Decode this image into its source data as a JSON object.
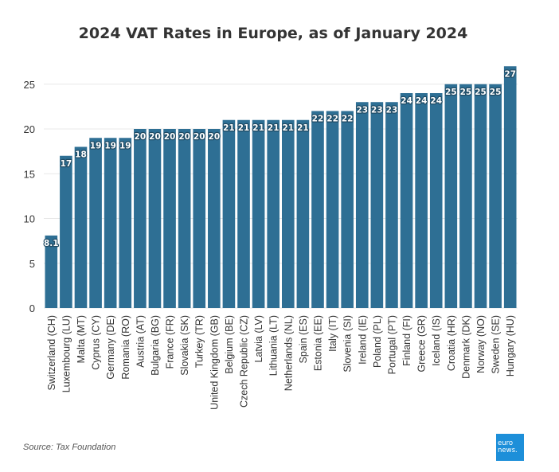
{
  "source": "Source: Tax Foundation",
  "logo": {
    "line1": "euro",
    "line2": "news.",
    "color": "#1d8fd9"
  },
  "chart_data": {
    "type": "bar",
    "title": "2024 VAT Rates in Europe, as of January 2024",
    "xlabel": "",
    "ylabel": "",
    "ylim": [
      0,
      28
    ],
    "yticks": [
      0,
      5,
      10,
      15,
      20,
      25
    ],
    "grid": true,
    "bar_color": "#2e6f94",
    "categories": [
      "Switzerland (CH)",
      "Luxembourg (LU)",
      "Malta (MT)",
      "Cyprus (CY)",
      "Germany (DE)",
      "Romania (RO)",
      "Austria (AT)",
      "Bulgaria (BG)",
      "France (FR)",
      "Slovakia (SK)",
      "Turkey (TR)",
      "United Kingdom (GB)",
      "Belgium (BE)",
      "Czech Republic (CZ)",
      "Latvia (LV)",
      "Lithuania (LT)",
      "Netherlands (NL)",
      "Spain (ES)",
      "Estonia (EE)",
      "Italy (IT)",
      "Slovenia (SI)",
      "Ireland (IE)",
      "Poland (PL)",
      "Portugal (PT)",
      "Finland (FI)",
      "Greece (GR)",
      "Iceland (IS)",
      "Croatia (HR)",
      "Denmark (DK)",
      "Norway (NO)",
      "Sweden (SE)",
      "Hungary (HU)"
    ],
    "values": [
      8.1,
      17,
      18,
      19,
      19,
      19,
      20,
      20,
      20,
      20,
      20,
      20,
      21,
      21,
      21,
      21,
      21,
      21,
      22,
      22,
      22,
      23,
      23,
      23,
      24,
      24,
      24,
      25,
      25,
      25,
      25,
      27
    ]
  }
}
